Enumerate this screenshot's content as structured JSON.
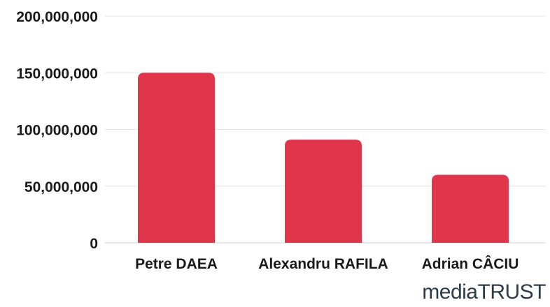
{
  "chart_data": {
    "type": "bar",
    "title": "",
    "xlabel": "",
    "ylabel": "",
    "categories": [
      "Petre DAEA",
      "Alexandru RAFILA",
      "Adrian CÂCIU"
    ],
    "values": [
      150000000,
      91000000,
      60000000
    ],
    "ylim": [
      0,
      200000000
    ],
    "yticks": [
      0,
      50000000,
      100000000,
      150000000,
      200000000
    ],
    "ytick_labels": [
      "0",
      "50,000,000",
      "100,000,000",
      "150,000,000",
      "200,000,000"
    ],
    "grid": true,
    "legend": "none",
    "bar_color": "#e0354b"
  },
  "logo": {
    "part1": "media",
    "part2": "TRUST"
  }
}
